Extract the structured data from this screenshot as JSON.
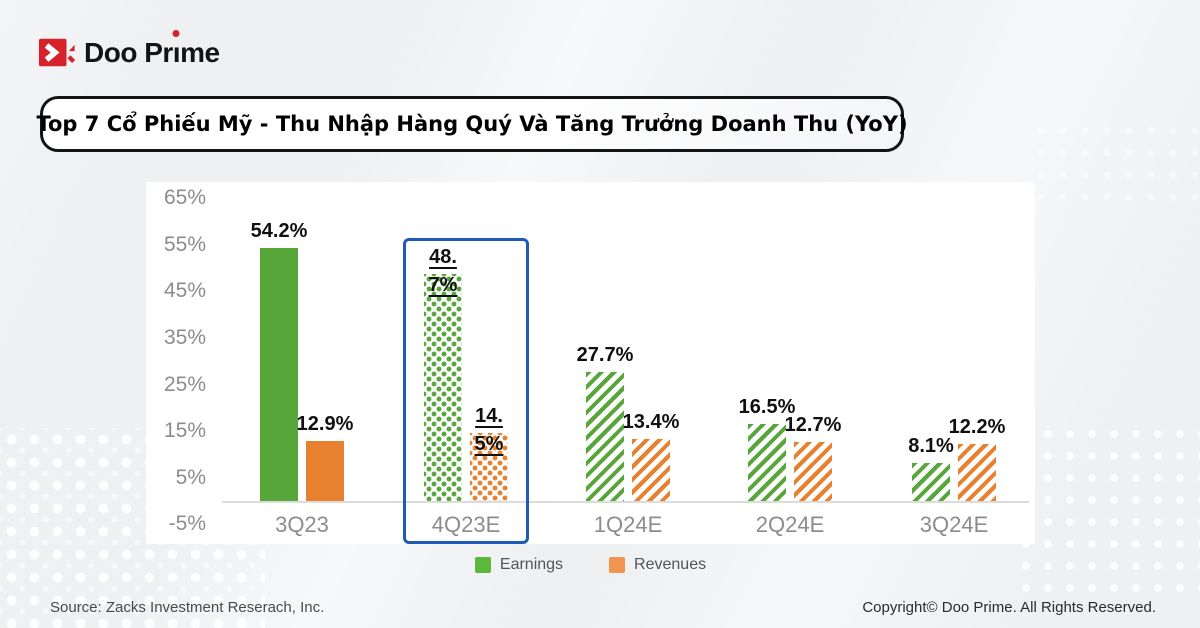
{
  "brand": {
    "name_pre": "Doo Pr",
    "name_i": "ı",
    "name_post": "me",
    "accent_color": "#D6222A"
  },
  "title_banner": {
    "text": "Top 7 Cổ Phiếu Mỹ - Thu Nhập Hàng Quý Và Tăng Trưởng Doanh Thu (YoY)"
  },
  "chart_data": {
    "type": "bar",
    "title": "Top 7 Cổ Phiếu Mỹ - Thu Nhập Hàng Quý Và Tăng Trưởng Doanh Thu (YoY)",
    "categories": [
      "3Q23",
      "4Q23E",
      "1Q24E",
      "2Q24E",
      "3Q24E"
    ],
    "series": [
      {
        "name": "Earnings",
        "color": "#57A63A",
        "values": [
          54.2,
          48.7,
          27.7,
          16.5,
          8.1
        ],
        "labels": [
          "54.2%",
          "48.7%",
          "27.7%",
          "16.5%",
          "8.1%"
        ]
      },
      {
        "name": "Revenues",
        "color": "#E8812F",
        "values": [
          12.9,
          14.5,
          13.4,
          12.7,
          12.2
        ],
        "labels": [
          "12.9%",
          "14.5%",
          "13.4%",
          "12.7%",
          "12.2%"
        ]
      }
    ],
    "y_ticks": [
      65,
      55,
      45,
      35,
      25,
      15,
      5,
      -5
    ],
    "y_tick_labels": [
      "65%",
      "55%",
      "45%",
      "35%",
      "25%",
      "15%",
      "5%",
      "-5%"
    ],
    "ylim": [
      -5,
      65
    ],
    "grid": false,
    "bar_fill_styles": [
      "solid",
      "dots",
      "stripes",
      "stripes",
      "stripes"
    ],
    "highlight": {
      "category": "4Q23E",
      "index": 1,
      "color": "#1E5BB8"
    },
    "legend_position": "bottom",
    "legend": [
      {
        "label": "Earnings",
        "color": "#5CB83C"
      },
      {
        "label": "Revenues",
        "color": "#F0954F"
      }
    ]
  },
  "footer": {
    "source": "Source: Zacks Investment Reserach, Inc.",
    "copyright": "Copyright© Doo Prime. All Rights Reserved."
  }
}
